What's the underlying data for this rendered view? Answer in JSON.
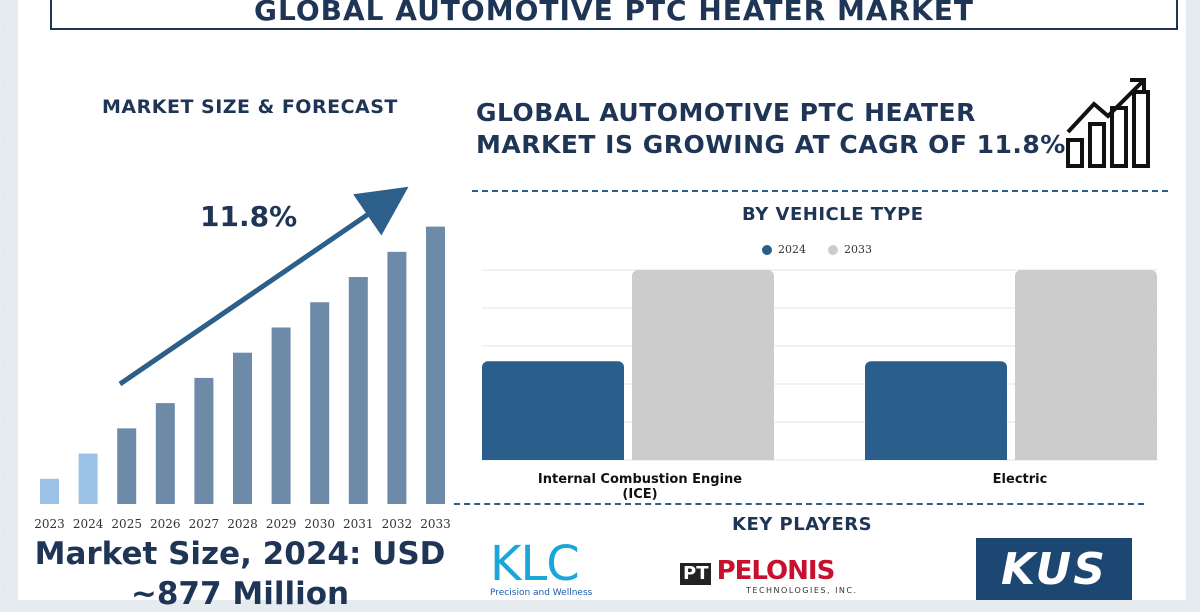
{
  "title": "GLOBAL AUTOMOTIVE PTC HEATER MARKET",
  "left_section": {
    "heading": "MARKET SIZE & FORECAST",
    "cagr_label": "11.8%",
    "market_size_line1": "Market Size, 2024: USD",
    "market_size_line2": "~877 Million"
  },
  "right_section": {
    "headline_line1": "GLOBAL AUTOMOTIVE PTC HEATER",
    "headline_line2": "MARKET IS GROWING AT CAGR OF 11.8%",
    "vehicle_heading": "BY VEHICLE TYPE",
    "players_heading": "KEY PLAYERS"
  },
  "players": {
    "klc": {
      "name": "KLC",
      "tagline": "Precision and Wellness"
    },
    "pelonis": {
      "prefix": "PT",
      "name": "PELONIS",
      "tagline": "TECHNOLOGIES, INC."
    },
    "kus": {
      "name": "KUS"
    }
  },
  "colors": {
    "navy": "#1f3556",
    "bar_light": "#9bc2e6",
    "bar_dark": "#6d8aa8",
    "series_2024": "#2a5f8c",
    "series_2033": "#cccccc"
  },
  "chart_data": [
    {
      "type": "bar",
      "categories": [
        "2023",
        "2024",
        "2025",
        "2026",
        "2027",
        "2028",
        "2029",
        "2030",
        "2031",
        "2032",
        "2033"
      ],
      "values": [
        1,
        2,
        3,
        4,
        5,
        6,
        7,
        8,
        9,
        10,
        11
      ],
      "title": "MARKET SIZE & FORECAST",
      "xlabel": "",
      "ylabel": "",
      "ylim": [
        0,
        11.5
      ],
      "grid": false,
      "annotation": "11.8%"
    },
    {
      "type": "bar",
      "title": "BY VEHICLE TYPE",
      "categories": [
        "Internal Combustion Engine (ICE)",
        "Electric"
      ],
      "series": [
        {
          "name": "2024",
          "values": [
            52,
            52
          ]
        },
        {
          "name": "2033",
          "values": [
            100,
            100
          ]
        }
      ],
      "ylim": [
        0,
        100
      ],
      "grid": true,
      "legend": "top-center"
    }
  ]
}
